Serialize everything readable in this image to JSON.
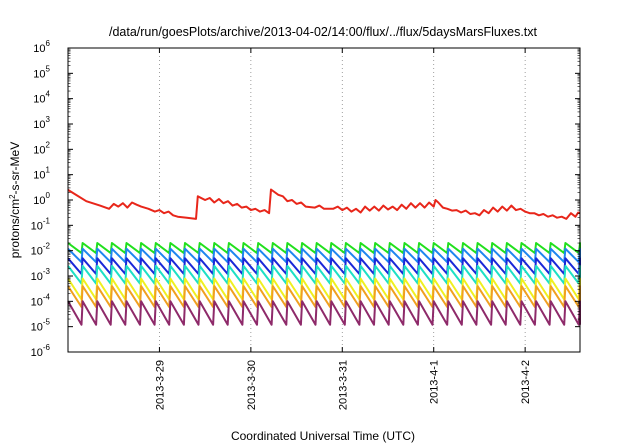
{
  "chart_data": {
    "type": "line",
    "title": "/data/run/goesPlots/archive/2013-04-02/14:00/flux/../flux/5daysMarsFluxes.txt",
    "xlabel": "Coordinated Universal Time (UTC)",
    "ylabel": {
      "pre": "protons/cm",
      "sup": "2",
      "post": "-s-sr-MeV"
    },
    "yscale": "log",
    "ylim": [
      1e-06,
      1000000.0
    ],
    "y_ticks": [
      {
        "exp": -6,
        "label": "10",
        "sup": "-6"
      },
      {
        "exp": -5,
        "label": "10",
        "sup": "-5"
      },
      {
        "exp": -4,
        "label": "10",
        "sup": "-4"
      },
      {
        "exp": -3,
        "label": "10",
        "sup": "-3"
      },
      {
        "exp": -2,
        "label": "10",
        "sup": "-2"
      },
      {
        "exp": -1,
        "label": "10",
        "sup": "-1"
      },
      {
        "exp": 0,
        "label": "10",
        "sup": "0"
      },
      {
        "exp": 1,
        "label": "10",
        "sup": "1"
      },
      {
        "exp": 2,
        "label": "10",
        "sup": "2"
      },
      {
        "exp": 3,
        "label": "10",
        "sup": "3"
      },
      {
        "exp": 4,
        "label": "10",
        "sup": "4"
      },
      {
        "exp": 5,
        "label": "10",
        "sup": "5"
      },
      {
        "exp": 6,
        "label": "10",
        "sup": "6"
      }
    ],
    "xlim": [
      0.0,
      5.6
    ],
    "x_ticks": [
      {
        "x": 1,
        "label": "2013-3-29"
      },
      {
        "x": 2,
        "label": "2013-3-30"
      },
      {
        "x": 3,
        "label": "2013-3-31"
      },
      {
        "x": 4,
        "label": "2013-4-1"
      },
      {
        "x": 5,
        "label": "2013-4-2"
      }
    ],
    "grid": true,
    "grid_style": "dotted",
    "series": [
      {
        "color": "#e8261a",
        "values": [
          [
            0.0,
            2.5
          ],
          [
            0.1,
            1.5
          ],
          [
            0.2,
            0.9
          ],
          [
            0.35,
            0.6
          ],
          [
            0.45,
            0.45
          ],
          [
            0.5,
            0.7
          ],
          [
            0.55,
            0.55
          ],
          [
            0.6,
            0.75
          ],
          [
            0.65,
            0.5
          ],
          [
            0.7,
            0.8
          ],
          [
            0.75,
            0.65
          ],
          [
            0.8,
            0.55
          ],
          [
            0.88,
            0.45
          ],
          [
            0.95,
            0.35
          ],
          [
            1.0,
            0.4
          ],
          [
            1.05,
            0.3
          ],
          [
            1.1,
            0.35
          ],
          [
            1.15,
            0.25
          ],
          [
            1.2,
            0.22
          ],
          [
            1.3,
            0.2
          ],
          [
            1.4,
            0.18
          ],
          [
            1.42,
            1.4
          ],
          [
            1.5,
            1.0
          ],
          [
            1.55,
            1.2
          ],
          [
            1.6,
            0.8
          ],
          [
            1.65,
            1.1
          ],
          [
            1.7,
            0.75
          ],
          [
            1.75,
            0.9
          ],
          [
            1.8,
            0.6
          ],
          [
            1.85,
            0.7
          ],
          [
            1.9,
            0.5
          ],
          [
            1.95,
            0.55
          ],
          [
            2.0,
            0.4
          ],
          [
            2.05,
            0.45
          ],
          [
            2.1,
            0.35
          ],
          [
            2.15,
            0.4
          ],
          [
            2.2,
            0.3
          ],
          [
            2.22,
            2.6
          ],
          [
            2.3,
            1.6
          ],
          [
            2.35,
            1.4
          ],
          [
            2.4,
            0.9
          ],
          [
            2.45,
            1.0
          ],
          [
            2.5,
            0.7
          ],
          [
            2.55,
            0.8
          ],
          [
            2.6,
            0.55
          ],
          [
            2.7,
            0.5
          ],
          [
            2.75,
            0.6
          ],
          [
            2.8,
            0.45
          ],
          [
            2.9,
            0.45
          ],
          [
            2.95,
            0.55
          ],
          [
            3.0,
            0.4
          ],
          [
            3.05,
            0.5
          ],
          [
            3.1,
            0.35
          ],
          [
            3.15,
            0.45
          ],
          [
            3.2,
            0.32
          ],
          [
            3.25,
            0.55
          ],
          [
            3.3,
            0.38
          ],
          [
            3.35,
            0.55
          ],
          [
            3.4,
            0.38
          ],
          [
            3.45,
            0.6
          ],
          [
            3.5,
            0.42
          ],
          [
            3.55,
            0.55
          ],
          [
            3.6,
            0.4
          ],
          [
            3.65,
            0.65
          ],
          [
            3.7,
            0.45
          ],
          [
            3.75,
            0.75
          ],
          [
            3.8,
            0.5
          ],
          [
            3.85,
            0.75
          ],
          [
            3.9,
            0.5
          ],
          [
            3.95,
            0.8
          ],
          [
            4.0,
            0.55
          ],
          [
            4.02,
            1.0
          ],
          [
            4.05,
            0.8
          ],
          [
            4.1,
            0.5
          ],
          [
            4.15,
            0.45
          ],
          [
            4.2,
            0.38
          ],
          [
            4.25,
            0.4
          ],
          [
            4.3,
            0.32
          ],
          [
            4.35,
            0.38
          ],
          [
            4.4,
            0.28
          ],
          [
            4.45,
            0.3
          ],
          [
            4.5,
            0.25
          ],
          [
            4.55,
            0.4
          ],
          [
            4.6,
            0.3
          ],
          [
            4.65,
            0.5
          ],
          [
            4.7,
            0.35
          ],
          [
            4.75,
            0.55
          ],
          [
            4.8,
            0.38
          ],
          [
            4.85,
            0.6
          ],
          [
            4.9,
            0.4
          ],
          [
            4.95,
            0.45
          ],
          [
            5.0,
            0.35
          ],
          [
            5.05,
            0.3
          ],
          [
            5.1,
            0.3
          ],
          [
            5.15,
            0.25
          ],
          [
            5.2,
            0.28
          ],
          [
            5.25,
            0.22
          ],
          [
            5.3,
            0.25
          ],
          [
            5.35,
            0.2
          ],
          [
            5.4,
            0.22
          ],
          [
            5.45,
            0.18
          ],
          [
            5.5,
            0.3
          ],
          [
            5.55,
            0.22
          ],
          [
            5.58,
            0.32
          ],
          [
            5.6,
            0.3
          ]
        ]
      },
      {
        "color": "#21e01e",
        "sawtooth": {
          "low": 0.008,
          "high": 0.02
        }
      },
      {
        "color": "#1f86f0",
        "sawtooth": {
          "low": 0.0035,
          "high": 0.012
        }
      },
      {
        "color": "#1a28d8",
        "sawtooth": {
          "low": 0.0012,
          "high": 0.005
        }
      },
      {
        "color": "#1ee0c6",
        "sawtooth": {
          "low": 0.0005,
          "high": 0.0025
        }
      },
      {
        "color": "#f0f020",
        "sawtooth": {
          "low": 0.00012,
          "high": 0.0008
        }
      },
      {
        "color": "#f0a020",
        "sawtooth": {
          "low": 6e-05,
          "high": 0.0004
        }
      },
      {
        "color": "#8e2a6a",
        "sawtooth": {
          "low": 1.2e-05,
          "high": 0.0001
        }
      }
    ],
    "sawtooth_period": 0.16
  }
}
